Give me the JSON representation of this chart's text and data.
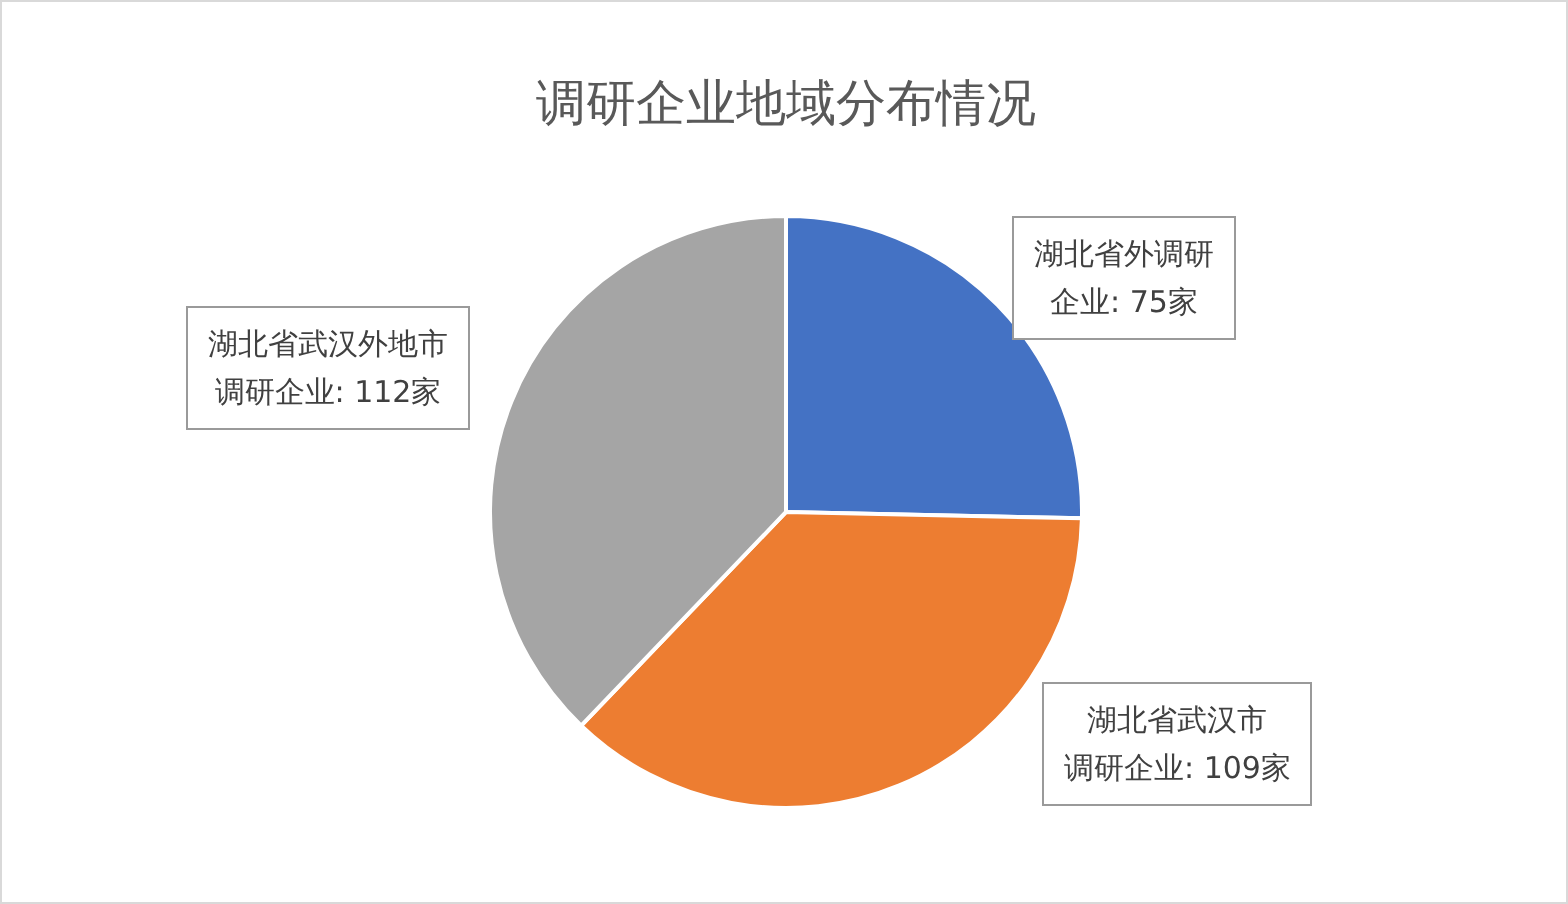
{
  "chart_data": {
    "type": "pie",
    "title": "调研企业地域分布情况",
    "categories": [
      "湖北省外调研企业",
      "湖北省武汉市调研企业",
      "湖北省武汉外地市调研企业"
    ],
    "values": [
      75,
      109,
      112
    ],
    "value_labels": [
      ": 75家",
      ": 109家",
      ": 112家"
    ],
    "colors": [
      "#4472c4",
      "#ed7d31",
      "#a5a5a5"
    ],
    "legend": false
  }
}
